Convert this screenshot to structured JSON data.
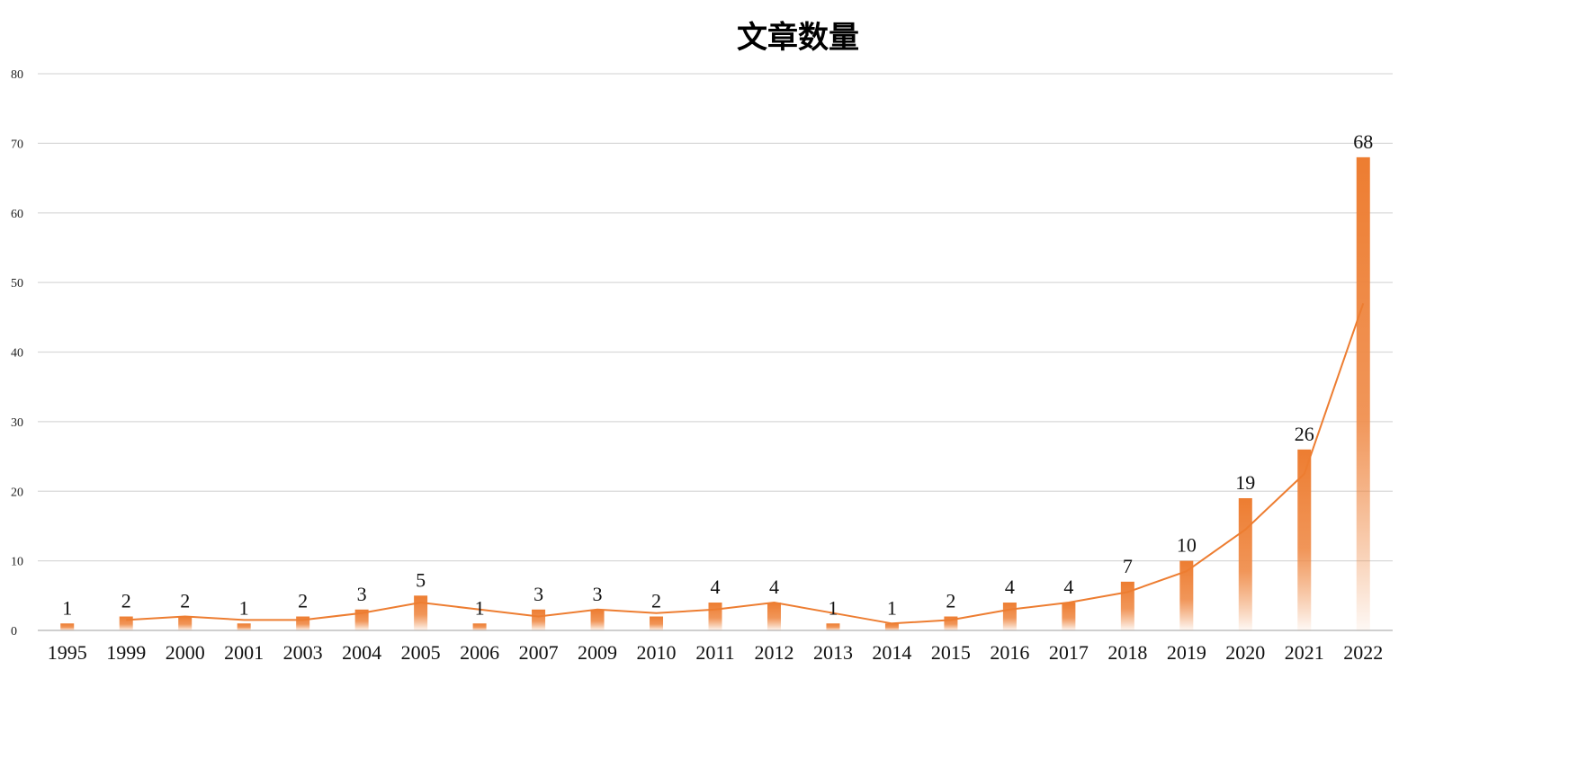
{
  "chart_data": {
    "type": "bar",
    "title": "文章数量",
    "xlabel": "",
    "ylabel": "",
    "ylim": [
      0,
      80
    ],
    "yticks": [
      0,
      10,
      20,
      30,
      40,
      50,
      60,
      70,
      80
    ],
    "grid": true,
    "categories": [
      "1995",
      "1999",
      "2000",
      "2001",
      "2003",
      "2004",
      "2005",
      "2006",
      "2007",
      "2009",
      "2010",
      "2011",
      "2012",
      "2013",
      "2014",
      "2015",
      "2016",
      "2017",
      "2018",
      "2019",
      "2020",
      "2021",
      "2022"
    ],
    "series": [
      {
        "values": [
          1,
          2,
          2,
          1,
          2,
          3,
          5,
          1,
          3,
          3,
          2,
          4,
          4,
          1,
          1,
          2,
          4,
          4,
          7,
          10,
          19,
          26,
          68
        ],
        "color": "#ED7D31",
        "data_labels": true
      }
    ],
    "trendline": {
      "type": "moving-average",
      "color": "#ED7D31",
      "values": [
        null,
        1.5,
        2,
        1.5,
        1.5,
        2.5,
        4,
        3,
        2,
        3,
        2.5,
        3,
        4,
        2.5,
        1,
        1.5,
        3,
        4,
        5.5,
        8.5,
        14.5,
        22.5,
        47
      ]
    }
  }
}
